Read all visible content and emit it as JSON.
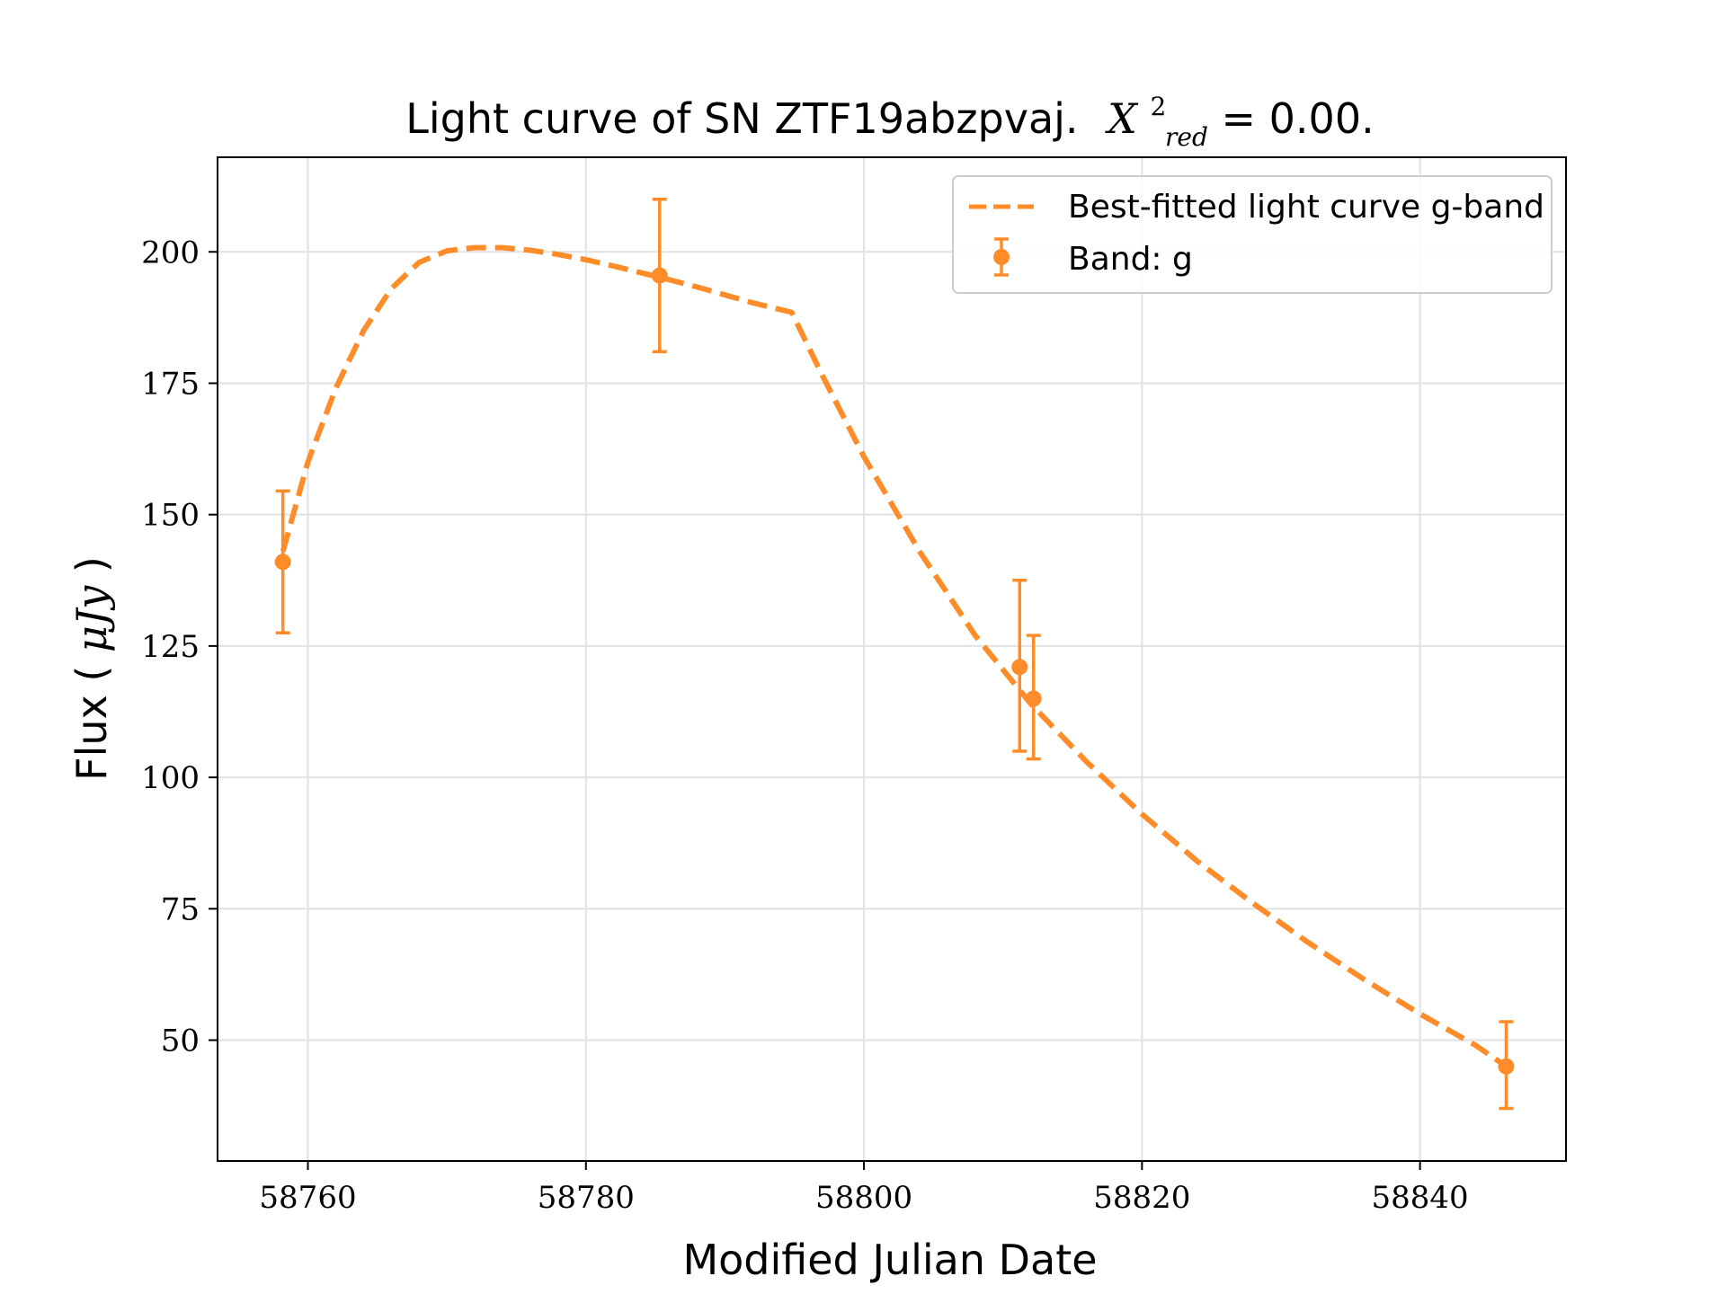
{
  "chart_data": {
    "type": "scatter",
    "title_prefix": "Light curve of SN ZTF19abzpvaj.",
    "title_stat_symbol": "X",
    "title_stat_superscript": "2",
    "title_stat_subscript": "red",
    "title_stat_equals": " = 0.00.",
    "xlabel": "Modified Julian Date",
    "ylabel_prefix": "Flux (",
    "ylabel_unit": "μJy",
    "ylabel_suffix": ")",
    "xlim": [
      58753.5,
      58850.5
    ],
    "ylim": [
      27,
      218
    ],
    "xticks": [
      58760,
      58780,
      58800,
      58820,
      58840
    ],
    "xtick_labels": [
      "58760",
      "58780",
      "58800",
      "58820",
      "58840"
    ],
    "yticks": [
      50,
      75,
      100,
      125,
      150,
      175,
      200
    ],
    "ytick_labels": [
      "50",
      "75",
      "100",
      "125",
      "150",
      "175",
      "200"
    ],
    "grid": true,
    "legend_position": "top-right",
    "legend": {
      "fit_label": "Best-fitted light curve g-band",
      "data_label": "Band: g"
    },
    "color": "#ff8c28",
    "series": [
      {
        "kind": "errorbar",
        "x": [
          58758.2,
          58785.3,
          58811.2,
          58812.2,
          58846.2
        ],
        "y": [
          141,
          195.5,
          121,
          115,
          45
        ],
        "yerr_low": [
          13.5,
          14.5,
          16,
          11.5,
          8
        ],
        "yerr_high": [
          13.5,
          14.5,
          16.5,
          12,
          8.5
        ]
      },
      {
        "kind": "dashed-line",
        "x": [
          58758.2,
          58760,
          58762,
          58764,
          58766,
          58768,
          58770,
          58772,
          58774,
          58776,
          58778,
          58780,
          58782,
          58784,
          58786,
          58788,
          58790,
          58792,
          58794.8,
          58797,
          58800,
          58804,
          58808,
          58812,
          58816,
          58820,
          58824,
          58828,
          58832,
          58836,
          58840,
          58844,
          58846.2
        ],
        "y": [
          143,
          160,
          174,
          185,
          193,
          198,
          200.2,
          200.8,
          200.8,
          200.3,
          199.5,
          198.5,
          197.3,
          196,
          194.7,
          193.3,
          191.8,
          190.3,
          188.5,
          176.5,
          161,
          143,
          127,
          114,
          103,
          93,
          84,
          76,
          68.5,
          61.5,
          55,
          49,
          45
        ]
      }
    ]
  }
}
